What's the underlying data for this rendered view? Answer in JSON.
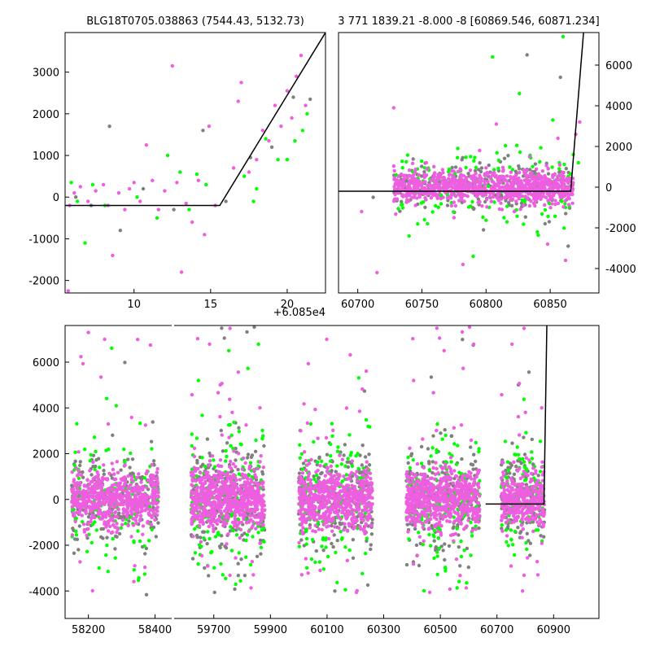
{
  "colors": {
    "pink": "#ee5ee0",
    "green": "#00ff00",
    "gray": "#808080",
    "model": "#000000"
  },
  "chart_data": [
    {
      "type": "scatter",
      "title": "BLG18T0705.038863 (7544.43, 5132.73)",
      "x_offset_label": "+6.085e4",
      "xlim": [
        5.5,
        22.5
      ],
      "ylim": [
        -2300,
        3950
      ],
      "xticks": [
        10,
        15,
        20
      ],
      "yticks": [
        -2000,
        -1000,
        0,
        1000,
        2000,
        3000
      ],
      "model_line": {
        "x": [
          5.5,
          15.6,
          22.5
        ],
        "y": [
          -200,
          -200,
          3950
        ]
      },
      "series": [
        {
          "name": "pink",
          "color": "pink",
          "points": [
            [
              5.8,
              -200
            ],
            [
              6.1,
              100
            ],
            [
              6.5,
              250
            ],
            [
              7.0,
              -100
            ],
            [
              7.5,
              150
            ],
            [
              8.0,
              300
            ],
            [
              8.3,
              -200
            ],
            [
              8.6,
              -1400
            ],
            [
              9.0,
              100
            ],
            [
              9.4,
              -300
            ],
            [
              9.7,
              200
            ],
            [
              10.0,
              350
            ],
            [
              10.4,
              -100
            ],
            [
              10.8,
              1250
            ],
            [
              11.2,
              400
            ],
            [
              11.6,
              -300
            ],
            [
              12.0,
              150
            ],
            [
              12.5,
              3150
            ],
            [
              12.8,
              350
            ],
            [
              13.1,
              -1800
            ],
            [
              13.4,
              -150
            ],
            [
              13.8,
              -600
            ],
            [
              14.2,
              400
            ],
            [
              14.6,
              -900
            ],
            [
              14.9,
              1700
            ],
            [
              15.3,
              -200
            ],
            [
              16.5,
              700
            ],
            [
              16.8,
              2300
            ],
            [
              17.0,
              2750
            ],
            [
              17.5,
              600
            ],
            [
              18.0,
              900
            ],
            [
              18.4,
              1600
            ],
            [
              18.8,
              1350
            ],
            [
              19.2,
              2200
            ],
            [
              19.6,
              1700
            ],
            [
              20.0,
              2550
            ],
            [
              20.3,
              1900
            ],
            [
              20.6,
              2900
            ],
            [
              20.9,
              3400
            ],
            [
              21.2,
              2200
            ],
            [
              5.7,
              -2250
            ]
          ]
        },
        {
          "name": "green",
          "color": "green",
          "points": [
            [
              5.9,
              350
            ],
            [
              6.3,
              -100
            ],
            [
              6.8,
              -1100
            ],
            [
              7.3,
              300
            ],
            [
              8.1,
              -200
            ],
            [
              10.2,
              0
            ],
            [
              11.5,
              -500
            ],
            [
              12.2,
              1000
            ],
            [
              13.0,
              600
            ],
            [
              13.6,
              -300
            ],
            [
              14.1,
              550
            ],
            [
              14.7,
              300
            ],
            [
              17.2,
              500
            ],
            [
              17.8,
              -100
            ],
            [
              18.6,
              1400
            ],
            [
              19.4,
              900
            ],
            [
              20.0,
              900
            ],
            [
              20.5,
              1350
            ],
            [
              21.0,
              1600
            ],
            [
              21.3,
              2000
            ],
            [
              18.0,
              200
            ]
          ]
        },
        {
          "name": "gray",
          "color": "gray",
          "points": [
            [
              6.2,
              0
            ],
            [
              7.2,
              -200
            ],
            [
              8.4,
              1700
            ],
            [
              9.1,
              -800
            ],
            [
              10.6,
              200
            ],
            [
              12.6,
              -300
            ],
            [
              14.5,
              1600
            ],
            [
              16.0,
              -100
            ],
            [
              17.6,
              950
            ],
            [
              19.0,
              1200
            ],
            [
              20.4,
              2400
            ],
            [
              21.5,
              2350
            ]
          ]
        }
      ]
    },
    {
      "type": "scatter",
      "title": "3 771 1839.21 -8.000 -8 [60869.546, 60871.234]",
      "xlim": [
        60685,
        60888
      ],
      "ylim": [
        -5200,
        7600
      ],
      "xticks": [
        60700,
        60750,
        60800,
        60850
      ],
      "yticks": [
        -4000,
        -2000,
        0,
        2000,
        4000,
        6000
      ],
      "model_line": {
        "x": [
          60685,
          60866,
          60876
        ],
        "y": [
          -200,
          -200,
          7600
        ]
      },
      "series": [
        {
          "name": "pink",
          "color": "pink",
          "points": [
            [
              60703,
              -1200
            ],
            [
              60715,
              -4200
            ],
            [
              60728,
              3900
            ],
            [
              60745,
              -900
            ],
            [
              60760,
              700
            ],
            [
              60775,
              -1500
            ],
            [
              60782,
              -3800
            ],
            [
              60795,
              1800
            ],
            [
              60808,
              3100
            ],
            [
              60822,
              -1200
            ],
            [
              60834,
              1500
            ],
            [
              60848,
              -2800
            ],
            [
              60856,
              2400
            ],
            [
              60862,
              -3600
            ],
            [
              60870,
              2600
            ],
            [
              60873,
              3200
            ]
          ]
        },
        {
          "name": "green",
          "color": "green",
          "points": [
            [
              60730,
              600
            ],
            [
              60740,
              -2400
            ],
            [
              60752,
              -1600
            ],
            [
              60765,
              -400
            ],
            [
              60778,
              1900
            ],
            [
              60790,
              -3400
            ],
            [
              60805,
              6400
            ],
            [
              60814,
              -1500
            ],
            [
              60826,
              4600
            ],
            [
              60840,
              -2200
            ],
            [
              60852,
              3300
            ],
            [
              60860,
              7400
            ],
            [
              60868,
              1600
            ],
            [
              60872,
              1200
            ]
          ]
        },
        {
          "name": "gray",
          "color": "gray",
          "points": [
            [
              60712,
              -500
            ],
            [
              60738,
              300
            ],
            [
              60770,
              -900
            ],
            [
              60798,
              -2100
            ],
            [
              60812,
              -400
            ],
            [
              60832,
              6500
            ],
            [
              60846,
              -1800
            ],
            [
              60858,
              5400
            ],
            [
              60864,
              -2900
            ]
          ]
        }
      ]
    },
    {
      "type": "scatter",
      "title": "",
      "ylim": [
        -5200,
        7600
      ],
      "yticks": [
        -4000,
        -2000,
        0,
        2000,
        4000,
        6000
      ],
      "segments": [
        {
          "xlim": [
            58130,
            58450
          ],
          "xticks": [
            58200,
            58400
          ]
        },
        {
          "xlim": [
            59560,
            61060
          ],
          "xticks": [
            59700,
            59900,
            60100,
            60300,
            60500,
            60700,
            60900
          ]
        }
      ],
      "model_line": {
        "x": [
          60660,
          60866,
          60876
        ],
        "y": [
          -200,
          -200,
          7600
        ]
      },
      "clusters": [
        {
          "x_range": [
            58150,
            58410
          ],
          "spread": 600,
          "n": 620
        },
        {
          "x_range": [
            59620,
            59880
          ],
          "spread": 700,
          "n": 700
        },
        {
          "x_range": [
            60000,
            60260
          ],
          "spread": 650,
          "n": 650
        },
        {
          "x_range": [
            60380,
            60640
          ],
          "spread": 650,
          "n": 650
        },
        {
          "x_range": [
            60715,
            60868
          ],
          "spread": 600,
          "n": 380
        }
      ]
    }
  ]
}
